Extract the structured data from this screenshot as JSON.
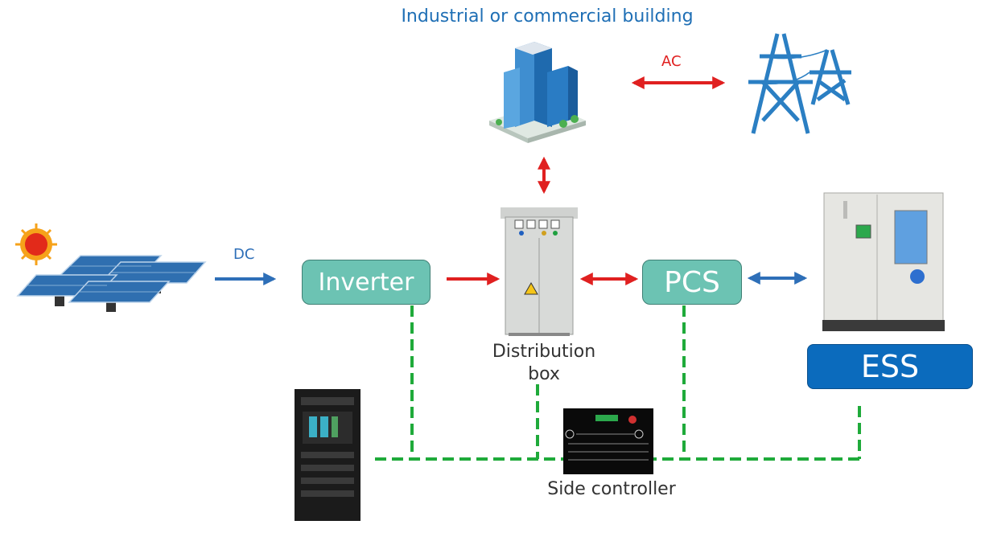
{
  "title": "Industrial or commercial building",
  "labels": {
    "ac": "AC",
    "dc": "DC",
    "inverter": "Inverter",
    "pcs": "PCS",
    "ess": "ESS",
    "distribution_line1": "Distribution",
    "distribution_line2": "box",
    "side_controller": "Side controller"
  },
  "colors": {
    "title_blue": "#1f6fb5",
    "ac_red": "#e02020",
    "dc_blue": "#2e6fb8",
    "teal_box": "#6cc3b3",
    "ess_blue": "#0b6bbd",
    "comm_green": "#1faa3a"
  },
  "icons": [
    "sun-icon",
    "solar-panel-icon",
    "office-building-icon",
    "power-tower-icon",
    "distribution-box-icon",
    "ess-cabinet-icon",
    "server-rack-icon",
    "controller-screen-icon"
  ]
}
